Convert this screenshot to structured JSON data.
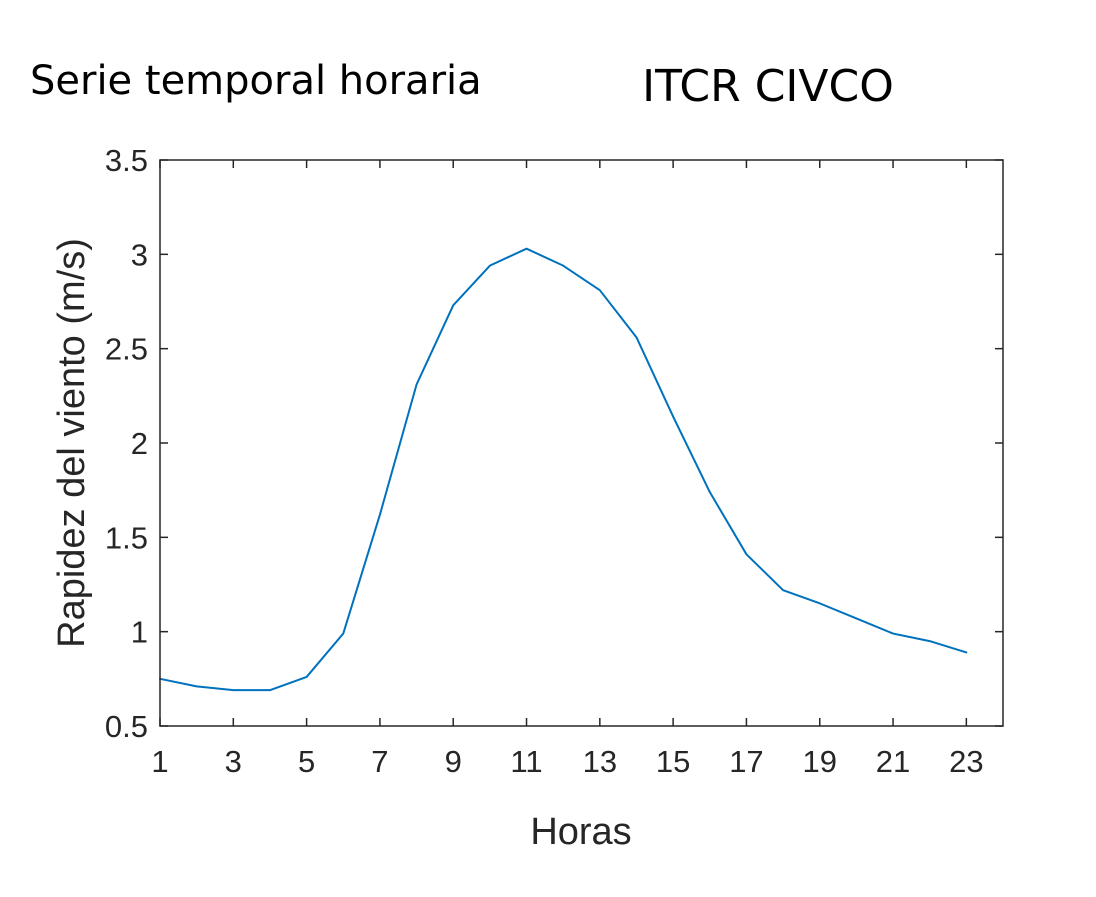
{
  "header": {
    "left_title": "Serie temporal horaria",
    "right_title": "ITCR CIVCO"
  },
  "chart_data": {
    "type": "line",
    "title": "",
    "xlabel": "Horas",
    "ylabel": "Rapidez del viento (m/s)",
    "xlim": [
      1,
      24
    ],
    "ylim": [
      0.5,
      3.5
    ],
    "xticks": [
      1,
      3,
      5,
      7,
      9,
      11,
      13,
      15,
      17,
      19,
      21,
      23
    ],
    "xtick_labels": [
      "1",
      "3",
      "5",
      "7",
      "9",
      "11",
      "13",
      "15",
      "17",
      "19",
      "21",
      "23"
    ],
    "yticks": [
      0.5,
      1,
      1.5,
      2,
      2.5,
      3,
      3.5
    ],
    "ytick_labels": [
      "0.5",
      "1",
      "1.5",
      "2",
      "2.5",
      "3",
      "3.5"
    ],
    "grid": false,
    "series": [
      {
        "color": "#0072BD",
        "x": [
          1,
          2,
          3,
          4,
          5,
          6,
          7,
          8,
          9,
          10,
          11,
          12,
          13,
          14,
          15,
          16,
          17,
          18,
          19,
          20,
          21,
          22,
          23
        ],
        "y": [
          0.75,
          0.71,
          0.69,
          0.69,
          0.76,
          0.99,
          1.62,
          2.31,
          2.73,
          2.94,
          3.03,
          2.94,
          2.81,
          2.56,
          2.14,
          1.74,
          1.41,
          1.22,
          1.15,
          1.07,
          0.99,
          0.95,
          0.89
        ]
      }
    ]
  }
}
